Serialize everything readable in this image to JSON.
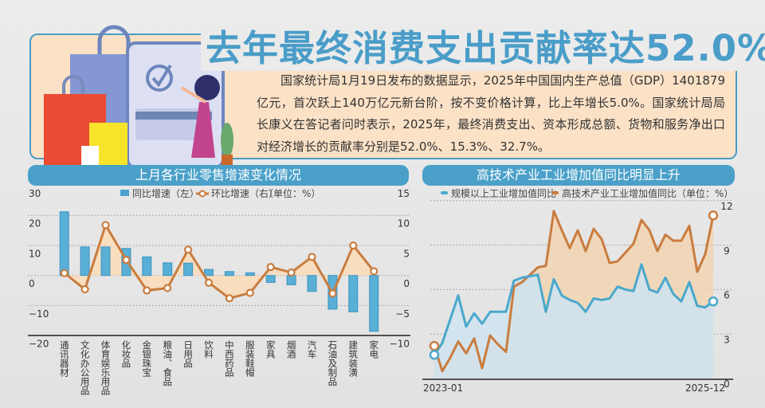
{
  "header": {
    "title": "去年最终消费支出贡献率达52.0%",
    "body": "国家统计局1月19日发布的数据显示，2025年中国国内生产总值（GDP）1401879亿元，首次跃上140万亿元新台阶，按不变价格计算，比上年增长5.0%。国家统计局局长康义在答记者问时表示，2025年，最终消费支出、资本形成总额、货物和服务净出口对经济增长的贡献率分别是52.0%、15.3%、32.7%。"
  },
  "colors": {
    "accent": "#4a9dc8",
    "bar": "#4aa3cf",
    "line": "#c97c3f",
    "blue_line": "#4aa8cc"
  },
  "chart_data": [
    {
      "type": "bar",
      "title": "上月各行业零售增速变化情况",
      "legend": {
        "bar": "同比增速（左）",
        "line": "环比增速（右）",
        "unit": "（单位：%）",
        "placement": "top"
      },
      "categories": [
        "通讯器材",
        "文化办公用品",
        "体育娱乐用品",
        "化妆品",
        "金银珠宝",
        "粮油、食品",
        "日用品",
        "饮料",
        "中西药品",
        "服装鞋帽",
        "家具",
        "烟酒",
        "汽车",
        "石油及制品",
        "建筑装潢",
        "家电"
      ],
      "series": [
        {
          "name": "同比增速（左）",
          "axis": "left",
          "values": [
            21.2,
            9.5,
            9.5,
            9.0,
            6.2,
            4.2,
            4.1,
            2.0,
            1.3,
            0.9,
            -2.3,
            -3.1,
            -5.3,
            -11.2,
            -12.1,
            -18.6
          ]
        },
        {
          "name": "环比增速（右）",
          "axis": "right",
          "values": [
            0.4,
            -2.3,
            8.4,
            2.6,
            -2.5,
            -2.1,
            4.3,
            -1.2,
            -3.8,
            -2.9,
            1.4,
            0.5,
            3.1,
            -3.0,
            5.0,
            0.7
          ]
        }
      ],
      "ylim_left": [
        -20,
        30
      ],
      "yticks_left": [
        "30",
        "20",
        "10",
        "0",
        "−10",
        "−20"
      ],
      "ylim_right": [
        -10,
        15
      ],
      "yticks_right": [
        "15",
        "10",
        "5",
        "0",
        "−5",
        "−10"
      ],
      "grid": true
    },
    {
      "type": "line",
      "title": "高技术产业工业增加值同比明显上升",
      "legend": {
        "s1": "规模以上工业增加值同比",
        "s2": "高技术产业工业增加值同比（单位：%）",
        "placement": "top"
      },
      "x_start": "2023-01",
      "x_end": "2025-12",
      "series": [
        {
          "name": "规模以上工业增加值同比",
          "values": [
            1.6,
            2.4,
            4.0,
            5.6,
            3.5,
            4.4,
            3.7,
            4.5,
            4.5,
            4.5,
            6.6,
            6.8,
            6.9,
            7.0,
            4.5,
            6.7,
            5.6,
            5.3,
            5.1,
            4.5,
            5.4,
            5.3,
            5.4,
            6.2,
            6.0,
            5.9,
            7.7,
            6.0,
            5.8,
            6.8,
            5.7,
            5.2,
            6.5,
            4.9,
            4.8,
            5.2
          ]
        },
        {
          "name": "高技术产业工业增加值同比",
          "values": [
            2.2,
            0.5,
            1.4,
            2.5,
            1.7,
            2.7,
            0.7,
            2.9,
            2.3,
            1.8,
            6.2,
            6.5,
            7.0,
            7.5,
            7.6,
            11.3,
            10.0,
            8.8,
            10.0,
            8.6,
            10.1,
            9.4,
            7.8,
            7.9,
            8.5,
            9.1,
            10.7,
            10.0,
            8.6,
            9.7,
            9.3,
            9.3,
            10.3,
            7.2,
            8.4,
            11.0
          ]
        }
      ],
      "ylim": [
        0,
        12
      ],
      "yticks": [
        "12",
        "9",
        "6",
        "3",
        "0"
      ],
      "grid": true
    }
  ]
}
